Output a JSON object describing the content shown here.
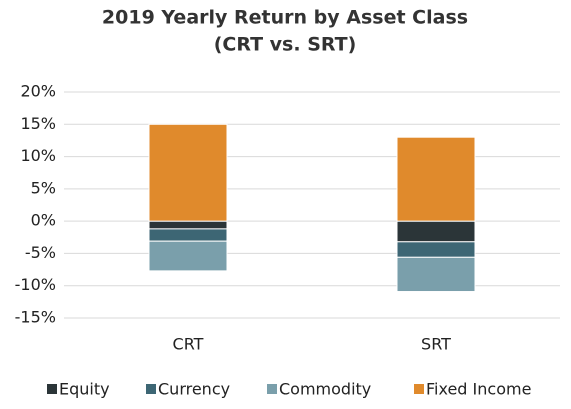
{
  "chart_data": {
    "type": "stacked_bar",
    "title": [
      "2019 Yearly Return by Asset Class",
      "(CRT vs. SRT)"
    ],
    "categories": [
      "CRT",
      "SRT"
    ],
    "series": [
      {
        "name": "Equity",
        "color": "#2b3538",
        "values": [
          -1.2,
          -3.2
        ]
      },
      {
        "name": "Currency",
        "color": "#3d6674",
        "values": [
          -1.9,
          -2.4
        ]
      },
      {
        "name": "Commodity",
        "color": "#7a9fab",
        "values": [
          -4.6,
          -5.3
        ]
      },
      {
        "name": "Fixed Income",
        "color": "#e08a2c",
        "values": [
          15,
          13
        ]
      }
    ],
    "ylim": [
      -15,
      20
    ],
    "yticks": [
      {
        "value": -15,
        "label": "-15%"
      },
      {
        "value": -10,
        "label": "-10%"
      },
      {
        "value": -5,
        "label": "-5%"
      },
      {
        "value": 0,
        "label": "0%"
      },
      {
        "value": 5,
        "label": "5%"
      },
      {
        "value": 10,
        "label": "10%"
      },
      {
        "value": 15,
        "label": "15%"
      },
      {
        "value": 20,
        "label": "20%"
      }
    ],
    "grid": true,
    "legend": "bottom"
  }
}
